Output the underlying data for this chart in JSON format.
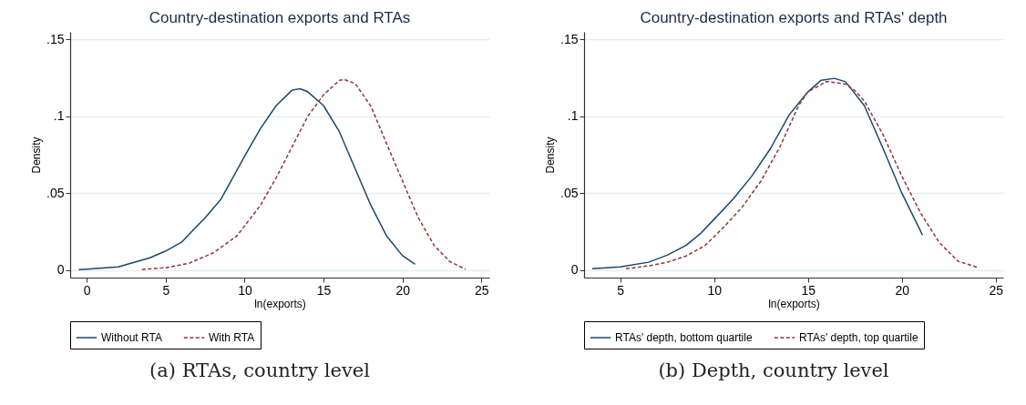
{
  "chart_data": [
    {
      "type": "line",
      "title": "Country-destination exports and RTAs",
      "xlabel": "ln(exports)",
      "ylabel": "Density",
      "xlim": [
        -1.05,
        25.5
      ],
      "ylim": [
        -0.005,
        0.155
      ],
      "xticks": [
        0,
        5,
        10,
        15,
        20,
        25
      ],
      "yticks": [
        0,
        {
          "value": 0.05,
          "label": ".05"
        },
        {
          "value": 0.1,
          "label": ".1"
        },
        {
          "value": 0.15,
          "label": ".15"
        }
      ],
      "grid": "y",
      "legend": "bottom",
      "annotations": [
        "(a) RTAs, country level"
      ],
      "series": [
        {
          "name": "Without RTA",
          "color": "#1a476f",
          "line_style": "solid",
          "x": [
            -0.5,
            0,
            2,
            4,
            5,
            6,
            7.5,
            8.5,
            10,
            11,
            12,
            13,
            13.5,
            14,
            15,
            16,
            17,
            18,
            19,
            20,
            20.8
          ],
          "values": [
            0.0002,
            0.0005,
            0.002,
            0.0079,
            0.0123,
            0.018,
            0.034,
            0.046,
            0.074,
            0.092,
            0.107,
            0.117,
            0.118,
            0.116,
            0.107,
            0.09,
            0.066,
            0.042,
            0.022,
            0.0093,
            0.0036
          ]
        },
        {
          "name": "With RTA",
          "color": "#90353b",
          "line_style": "dashed",
          "x": [
            3.5,
            5,
            6.5,
            8,
            9.5,
            11,
            12,
            13,
            14,
            15,
            16,
            16.3,
            17,
            18,
            19,
            20,
            21,
            22,
            23,
            24
          ],
          "values": [
            0.0004,
            0.0014,
            0.0044,
            0.011,
            0.022,
            0.042,
            0.06,
            0.08,
            0.1,
            0.114,
            0.1234,
            0.124,
            0.1214,
            0.1066,
            0.082,
            0.058,
            0.034,
            0.016,
            0.0054,
            0.0004
          ]
        }
      ]
    },
    {
      "type": "line",
      "title": "Country-destination exports and RTAs' depth",
      "xlabel": "ln(exports)",
      "ylabel": "Density",
      "xlim": [
        3.07,
        25.4
      ],
      "ylim": [
        -0.005,
        0.155
      ],
      "xticks": [
        5,
        10,
        15,
        20,
        25
      ],
      "yticks": [
        0,
        {
          "value": 0.05,
          "label": ".05"
        },
        {
          "value": 0.1,
          "label": ".1"
        },
        {
          "value": 0.15,
          "label": ".15"
        }
      ],
      "grid": "y",
      "legend": "bottom",
      "annotations": [
        "(b) Depth, country level"
      ],
      "series": [
        {
          "name": "RTAs' depth, bottom quartile",
          "color": "#1a476f",
          "line_style": "solid",
          "x": [
            3.5,
            5,
            6.5,
            7.5,
            8.5,
            9.3,
            10,
            11,
            12,
            13,
            14,
            15,
            15.7,
            16.4,
            17,
            18,
            19,
            20,
            21.1
          ],
          "values": [
            0.0008,
            0.002,
            0.005,
            0.0096,
            0.016,
            0.024,
            0.033,
            0.046,
            0.061,
            0.079,
            0.101,
            0.116,
            0.1235,
            0.1247,
            0.1225,
            0.107,
            0.079,
            0.05,
            0.0227
          ]
        },
        {
          "name": "RTAs' depth, top quartile",
          "color": "#90353b",
          "line_style": "dashed",
          "x": [
            5.3,
            6.5,
            7.5,
            8.5,
            9.5,
            10.5,
            11.5,
            12.5,
            13.5,
            14.5,
            15,
            16,
            17,
            17.5,
            18,
            19,
            20,
            21,
            22,
            23,
            24
          ],
          "values": [
            0.0008,
            0.0026,
            0.005,
            0.009,
            0.0157,
            0.0277,
            0.041,
            0.058,
            0.08,
            0.107,
            0.116,
            0.1227,
            0.121,
            0.1167,
            0.11,
            0.088,
            0.061,
            0.037,
            0.0177,
            0.0056,
            0.0018
          ]
        }
      ]
    }
  ]
}
